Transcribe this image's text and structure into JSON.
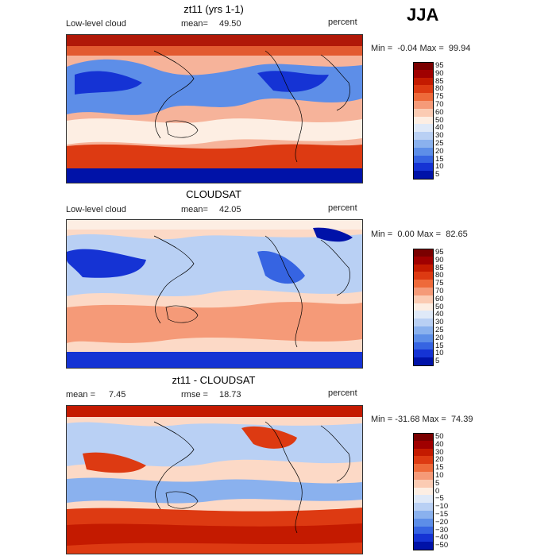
{
  "season": "JJA",
  "panels": [
    {
      "title": "zt11 (yrs 1-1)",
      "left_label": "Low-level cloud",
      "mid_label": "mean=",
      "mid_value": "49.50",
      "right_label": "percent",
      "min_label": "Min =",
      "min_value": "-0.04",
      "max_label": "Max =",
      "max_value": "99.94",
      "levels": [
        "95",
        "90",
        "85",
        "80",
        "75",
        "70",
        "60",
        "50",
        "40",
        "30",
        "25",
        "20",
        "15",
        "10",
        "5"
      ],
      "colors": [
        "#7a0000",
        "#a00000",
        "#c41a00",
        "#dd3a12",
        "#ee6a3a",
        "#f59a78",
        "#fbcbb3",
        "#fdeee3",
        "#dfe9f8",
        "#b9d0f4",
        "#8ab1ee",
        "#5d8ee8",
        "#3664e2",
        "#1533d4",
        "#0012a8"
      ]
    },
    {
      "title": "CLOUDSAT",
      "left_label": "Low-level cloud",
      "mid_label": "mean=",
      "mid_value": "42.05",
      "right_label": "percent",
      "min_label": "Min =",
      "min_value": "0.00",
      "max_label": "Max =",
      "max_value": "82.65",
      "levels": [
        "95",
        "90",
        "85",
        "80",
        "75",
        "70",
        "60",
        "50",
        "40",
        "30",
        "25",
        "20",
        "15",
        "10",
        "5"
      ],
      "colors": [
        "#7a0000",
        "#a00000",
        "#c41a00",
        "#dd3a12",
        "#ee6a3a",
        "#f59a78",
        "#fbcbb3",
        "#fdeee3",
        "#dfe9f8",
        "#b9d0f4",
        "#8ab1ee",
        "#5d8ee8",
        "#3664e2",
        "#1533d4",
        "#0012a8"
      ]
    },
    {
      "title": "zt11 - CLOUDSAT",
      "left_label": "mean =",
      "left_value": "7.45",
      "mid_label": "rmse =",
      "mid_value": "18.73",
      "right_label": "percent",
      "min_label": "Min =",
      "min_value": "-31.68",
      "max_label": "Max =",
      "max_value": "74.39",
      "levels": [
        "50",
        "40",
        "30",
        "20",
        "15",
        "10",
        "5",
        "0",
        "−5",
        "−10",
        "−15",
        "−20",
        "−30",
        "−40",
        "−50"
      ],
      "colors": [
        "#7a0000",
        "#a00000",
        "#c41a00",
        "#dd3a12",
        "#ee6a3a",
        "#f59a78",
        "#fbcbb3",
        "#fdeee3",
        "#dfe9f8",
        "#b9d0f4",
        "#8ab1ee",
        "#5d8ee8",
        "#3664e2",
        "#1533d4",
        "#0012a8"
      ]
    }
  ]
}
